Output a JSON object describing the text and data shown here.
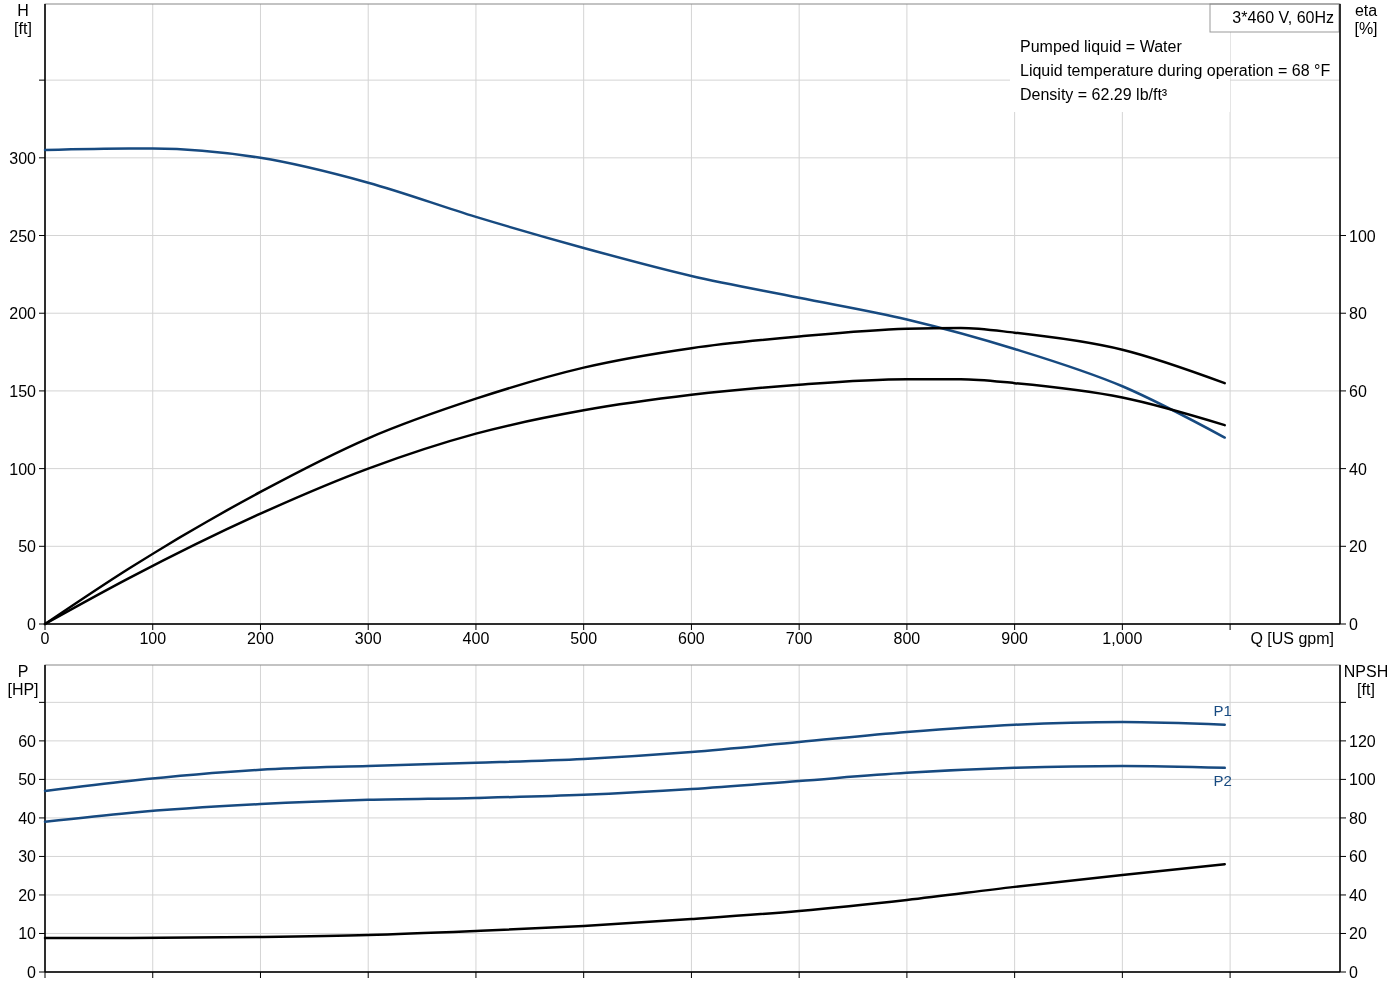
{
  "chart_data": [
    {
      "type": "line",
      "xlabel": "Q [US gpm]",
      "ylabel": "H [ft]",
      "y2label": "eta [%]",
      "grid": true,
      "xlim": [
        0,
        1202
      ],
      "xticks": [
        0,
        100,
        200,
        300,
        400,
        500,
        600,
        700,
        800,
        900,
        {
          "value": 1000,
          "label": "1,000"
        },
        {
          "value": 1100,
          "label": null
        }
      ],
      "ylim": [
        0,
        399
      ],
      "yticks": [
        0,
        50,
        100,
        150,
        200,
        250,
        300,
        {
          "value": 350,
          "label": null
        }
      ],
      "y2lim": [
        0,
        159.6
      ],
      "y2ticks": [
        0,
        20,
        40,
        60,
        80,
        100
      ],
      "annotations": [
        "3*460 V, 60Hz",
        "Pumped liquid = Water",
        "Liquid temperature during operation = 68 °F",
        "Density = 62.29 lb/ft³"
      ],
      "series": [
        {
          "color": "#174a80",
          "x": [
            0,
            78,
            100,
            200,
            300,
            400,
            500,
            600,
            700,
            800,
            900,
            1000,
            1095
          ],
          "values": [
            305,
            306,
            306,
            300,
            284,
            262,
            242,
            224,
            210,
            196,
            177,
            153,
            120
          ]
        },
        {
          "color": "#000000",
          "axis": "y2",
          "x": [
            0,
            78,
            200,
            300,
            400,
            500,
            600,
            700,
            800,
            850,
            900,
            1000,
            1095
          ],
          "values": [
            0,
            14.3,
            34,
            47.8,
            58,
            66,
            71,
            74,
            76,
            76.2,
            75,
            70.6,
            62
          ]
        },
        {
          "color": "#000000",
          "axis": "y2",
          "x": [
            0,
            78,
            200,
            300,
            400,
            500,
            600,
            700,
            800,
            850,
            900,
            1000,
            1095
          ],
          "values": [
            0,
            11.8,
            28.4,
            40,
            49,
            55,
            59,
            61.6,
            63,
            63,
            62,
            58.3,
            51.2
          ]
        }
      ]
    },
    {
      "type": "line",
      "ylabel": "P [HP]",
      "y2label": "NPSH [ft]",
      "grid": true,
      "tick_labels": "y",
      "xlim": [
        0,
        1202
      ],
      "xticks": [
        0,
        100,
        200,
        300,
        400,
        500,
        600,
        700,
        800,
        900,
        1000,
        1100
      ],
      "ylim": [
        0,
        79.7
      ],
      "yticks": [
        0,
        10,
        20,
        30,
        40,
        50,
        60,
        {
          "value": 70,
          "label": null
        }
      ],
      "y2lim": [
        0,
        159.4
      ],
      "y2ticks": [
        0,
        20,
        40,
        60,
        80,
        100,
        120,
        {
          "value": 140,
          "label": null
        }
      ],
      "series": [
        {
          "name": "P1",
          "color": "#174a80",
          "x": [
            0,
            78,
            200,
            300,
            400,
            500,
            600,
            700,
            800,
            900,
            1000,
            1095
          ],
          "values": [
            47,
            49.6,
            52.5,
            53.5,
            54.3,
            55.3,
            57.1,
            59.7,
            62.3,
            64.2,
            64.9,
            64.2
          ]
        },
        {
          "name": "P2",
          "color": "#174a80",
          "x": [
            0,
            78,
            200,
            300,
            400,
            500,
            600,
            700,
            800,
            900,
            1000,
            1095
          ],
          "values": [
            39,
            41.3,
            43.6,
            44.7,
            45.2,
            46,
            47.5,
            49.6,
            51.7,
            53,
            53.5,
            53
          ]
        },
        {
          "color": "#000000",
          "axis": "y2",
          "x": [
            0,
            78,
            200,
            300,
            400,
            500,
            600,
            700,
            800,
            900,
            1000,
            1095
          ],
          "values": [
            17.7,
            17.7,
            18.2,
            19.2,
            21.3,
            23.9,
            27.5,
            31.7,
            37.4,
            44.2,
            50.4,
            56
          ]
        }
      ]
    }
  ]
}
